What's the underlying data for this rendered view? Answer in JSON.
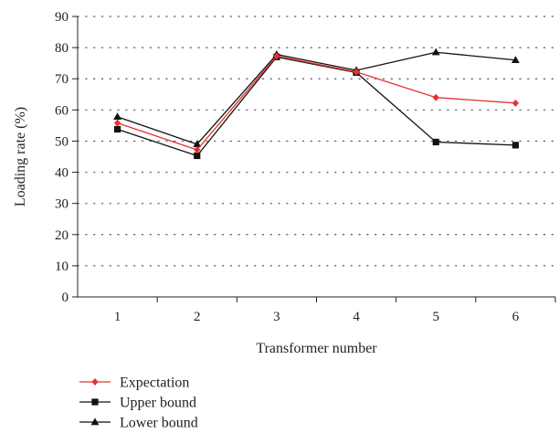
{
  "chart_data": {
    "type": "line",
    "xlabel": "Transformer number",
    "ylabel": "Loading rate (%)",
    "categories": [
      "1",
      "2",
      "3",
      "4",
      "5",
      "6"
    ],
    "ylim": [
      0,
      90
    ],
    "yticks": [
      0,
      10,
      20,
      30,
      40,
      50,
      60,
      70,
      80,
      90
    ],
    "grid": "horizontal dotted",
    "legend_position": "bottom-left",
    "series": [
      {
        "name": "Expectation",
        "color": "#e8312f",
        "marker": "diamond",
        "values": [
          55.8,
          47.2,
          77.3,
          72.2,
          64.0,
          62.2
        ]
      },
      {
        "name": "Upper bound",
        "color": "#111111",
        "marker": "square",
        "values": [
          53.8,
          45.3,
          77.0,
          72.0,
          49.7,
          48.7
        ]
      },
      {
        "name": "Lower bound",
        "color": "#111111",
        "marker": "triangle",
        "values": [
          57.8,
          49.0,
          77.8,
          72.7,
          78.5,
          76.0
        ]
      }
    ]
  }
}
